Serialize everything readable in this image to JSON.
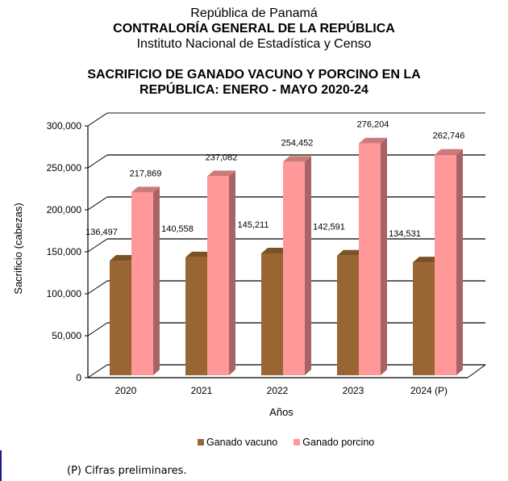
{
  "header": {
    "country": "República de Panamá",
    "organization": "CONTRALORÍA GENERAL DE LA REPÚBLICA",
    "institute": "Instituto Nacional de Estadística y Censo",
    "title_line1": "SACRIFICIO DE GANADO VACUNO Y PORCINO EN LA",
    "title_line2": "REPÚBLICA: ENERO - MAYO 2020-24"
  },
  "footnote": "(P) Cifras preliminares.",
  "colors": {
    "vacuno_front": "#996633",
    "vacuno_top": "#7a5226",
    "porcino_front": "#ff9999",
    "porcino_top": "#cc7a7a",
    "porcino_side": "#a86464"
  },
  "chart_data": {
    "type": "bar",
    "style": "3d-clustered-column",
    "title": "SACRIFICIO DE GANADO VACUNO Y PORCINO EN LA REPÚBLICA: ENERO - MAYO 2020-24",
    "xlabel": "Años",
    "ylabel": "Sacrificio (cabezas)",
    "ylim": [
      0,
      300000
    ],
    "yticks": [
      0,
      50000,
      100000,
      150000,
      200000,
      250000,
      300000
    ],
    "ytick_labels": [
      "0",
      "50,000",
      "100,000",
      "150,000",
      "200,000",
      "250,000",
      "300,000"
    ],
    "grid": true,
    "legend_position": "bottom",
    "categories": [
      "2020",
      "2021",
      "2022",
      "2023",
      "2024 (P)"
    ],
    "series": [
      {
        "name": "Ganado vacuno",
        "values": [
          136497,
          140558,
          145211,
          142591,
          134531
        ],
        "labels": [
          "136,497",
          "140,558",
          "145,211",
          "142,591",
          "134,531"
        ]
      },
      {
        "name": "Ganado porcino",
        "values": [
          217869,
          237082,
          254452,
          276204,
          262746
        ],
        "labels": [
          "217,869",
          "237,082",
          "254,452",
          "276,204",
          "262,746"
        ]
      }
    ]
  }
}
